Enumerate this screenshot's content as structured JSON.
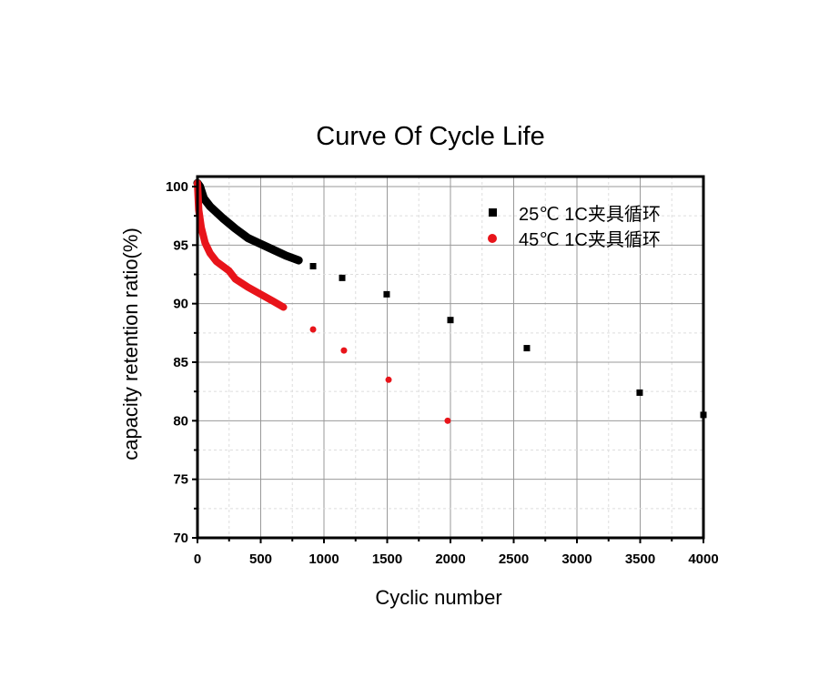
{
  "chart_data": {
    "type": "scatter",
    "title": "Curve Of Cycle Life",
    "xlabel": "Cyclic number",
    "ylabel": "capacity retention ratio(%)",
    "xlim": [
      0,
      4000
    ],
    "ylim": [
      70,
      100.85
    ],
    "xticks": [
      "0",
      "500",
      "1000",
      "1500",
      "2000",
      "2500",
      "3000",
      "3500",
      "4000"
    ],
    "yticks": [
      "70",
      "75",
      "80",
      "85",
      "90",
      "95",
      "100"
    ],
    "grid": true,
    "legend_position": "top-right",
    "series": [
      {
        "name": "25℃ 1C夹具循环",
        "color": "#000000",
        "marker": "square",
        "dense": {
          "x": [
            0,
            20,
            50,
            100,
            200,
            300,
            400,
            500,
            600,
            700,
            800
          ],
          "y": [
            100.3,
            100,
            99,
            98.3,
            97.3,
            96.4,
            95.6,
            95.1,
            94.6,
            94.1,
            93.7
          ]
        },
        "x": [
          914,
          1144,
          1496,
          2000,
          2604,
          3496,
          4000
        ],
        "y": [
          93.2,
          92.2,
          90.8,
          88.6,
          86.2,
          82.4,
          80.5
        ]
      },
      {
        "name": "45℃ 1C夹具循环",
        "color": "#e8141a",
        "marker": "circle",
        "dense": {
          "x": [
            0,
            10,
            30,
            60,
            100,
            150,
            250,
            300,
            400,
            500,
            600,
            680
          ],
          "y": [
            100.3,
            98,
            96.5,
            95.2,
            94.3,
            93.6,
            92.8,
            92.1,
            91.4,
            90.8,
            90.2,
            89.7
          ]
        },
        "x": [
          914,
          1158,
          1511,
          1978
        ],
        "y": [
          87.8,
          86.0,
          83.5,
          80.0
        ]
      }
    ]
  }
}
